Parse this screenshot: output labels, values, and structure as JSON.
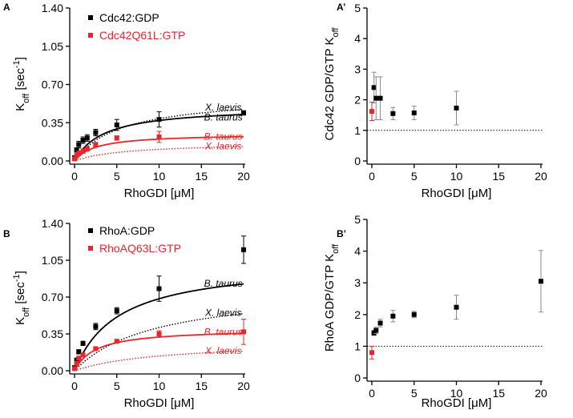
{
  "colors": {
    "black": "#000000",
    "red": "#e8262b",
    "gray": "#8a8a8a"
  },
  "chart_data": [
    {
      "panel": "A",
      "type": "scatter",
      "xlabel": "RhoGDI [μM]",
      "ylabel": "K_off [sec^-1]",
      "xlim": [
        0,
        20
      ],
      "ylim": [
        0,
        1.4
      ],
      "xticks": [
        "0",
        "5",
        "10",
        "15",
        "20"
      ],
      "yticks": [
        "0.00",
        "0.35",
        "0.70",
        "1.05",
        "1.40"
      ],
      "legend": "top-left",
      "series": [
        {
          "name": "Cdc42:GDP",
          "color": "#000000",
          "x": [
            0,
            0.25,
            0.5,
            1,
            1.5,
            2.5,
            5,
            10,
            20
          ],
          "y": [
            0.03,
            0.1,
            0.15,
            0.19,
            0.21,
            0.26,
            0.33,
            0.38,
            0.44
          ],
          "err": [
            0.01,
            0.02,
            0.03,
            0.03,
            0.03,
            0.03,
            0.05,
            0.07,
            0.02
          ]
        },
        {
          "name": "Cdc42Q61L:GTP",
          "color": "#e8262b",
          "x": [
            0,
            0.25,
            0.5,
            1,
            1.5,
            2.5,
            5,
            10
          ],
          "y": [
            0.02,
            0.05,
            0.07,
            0.09,
            0.11,
            0.15,
            0.21,
            0.22
          ],
          "err": [
            0.01,
            0.01,
            0.02,
            0.02,
            0.02,
            0.02,
            0.02,
            0.05
          ]
        }
      ],
      "curves": [
        {
          "label": "X. laevis",
          "color": "#000000",
          "style": "dotted",
          "vmax": 0.6,
          "km": 5.5,
          "y0": 0.0
        },
        {
          "label": "B. taurus",
          "color": "#000000",
          "style": "solid",
          "vmax": 0.5,
          "km": 3.5,
          "y0": 0.0
        },
        {
          "label": "B. taurus",
          "color": "#e8262b",
          "style": "solid",
          "vmax": 0.25,
          "km": 2.5,
          "y0": 0.0
        },
        {
          "label": "X. laevis",
          "color": "#e8262b",
          "style": "dotted",
          "vmax": 0.17,
          "km": 6.0,
          "y0": 0.0
        }
      ],
      "curve_labels": [
        {
          "text": "X. laevis",
          "color": "#000000",
          "x": 17.6,
          "y": 0.49
        },
        {
          "text": "B. taurus",
          "color": "#000000",
          "x": 17.6,
          "y": 0.4
        },
        {
          "text": "B. taurus",
          "color": "#e8262b",
          "x": 17.6,
          "y": 0.225
        },
        {
          "text": "X. laevis",
          "color": "#e8262b",
          "x": 17.6,
          "y": 0.135
        }
      ]
    },
    {
      "panel": "A’",
      "type": "scatter",
      "xlabel": "RhoGDI [μM]",
      "ylabel": "Cdc42 GDP/GTP K_off",
      "xlim": [
        0,
        20
      ],
      "ylim": [
        0,
        5
      ],
      "xticks": [
        "0",
        "5",
        "10",
        "15",
        "20"
      ],
      "yticks": [
        "0",
        "1",
        "2",
        "3",
        "4",
        "5"
      ],
      "reference_line": 1,
      "series": [
        {
          "name": "",
          "color": "#000000",
          "x": [
            0.25,
            0.5,
            1,
            2.5,
            5,
            10
          ],
          "y": [
            2.4,
            2.05,
            2.05,
            1.55,
            1.57,
            1.73
          ],
          "err": [
            0.5,
            0.7,
            0.7,
            0.2,
            0.22,
            0.55
          ]
        },
        {
          "name": "",
          "color": "#e8262b",
          "x": [
            0
          ],
          "y": [
            1.62
          ],
          "err": [
            0.3
          ]
        }
      ]
    },
    {
      "panel": "B",
      "type": "scatter",
      "xlabel": "RhoGDI [μM]",
      "ylabel": "K_off [sec^-1]",
      "xlim": [
        0,
        20
      ],
      "ylim": [
        0,
        1.4
      ],
      "xticks": [
        "0",
        "5",
        "10",
        "15",
        "20"
      ],
      "yticks": [
        "0.00",
        "0.35",
        "0.70",
        "1.05",
        "1.40"
      ],
      "legend": "top-left",
      "series": [
        {
          "name": "RhoA:GDP",
          "color": "#000000",
          "x": [
            0,
            0.25,
            0.5,
            1,
            2.5,
            5,
            10,
            20
          ],
          "y": [
            0.03,
            0.1,
            0.18,
            0.26,
            0.42,
            0.57,
            0.78,
            1.15
          ],
          "err": [
            0.01,
            0.02,
            0.02,
            0.02,
            0.03,
            0.03,
            0.12,
            0.13
          ]
        },
        {
          "name": "RhoAQ63L:GTP",
          "color": "#e8262b",
          "x": [
            0,
            0.25,
            0.5,
            1,
            2.5,
            5,
            10,
            20
          ],
          "y": [
            0.02,
            0.07,
            0.12,
            0.15,
            0.21,
            0.28,
            0.35,
            0.37
          ],
          "err": [
            0.01,
            0.01,
            0.01,
            0.01,
            0.01,
            0.01,
            0.03,
            0.12
          ]
        }
      ],
      "curves": [
        {
          "label": "B. taurus",
          "color": "#000000",
          "style": "solid",
          "vmax": 1.04,
          "km": 5.2,
          "y0": 0.0
        },
        {
          "label": "X. laevis",
          "color": "#000000",
          "style": "dotted",
          "vmax": 0.8,
          "km": 9.5,
          "y0": 0.0
        },
        {
          "label": "B. taurus",
          "color": "#e8262b",
          "style": "solid",
          "vmax": 0.4,
          "km": 2.5,
          "y0": 0.0
        },
        {
          "label": "X. laevis",
          "color": "#e8262b",
          "style": "dotted",
          "vmax": 0.28,
          "km": 10.0,
          "y0": 0.0
        }
      ],
      "curve_labels": [
        {
          "text": "B. taurus",
          "color": "#000000",
          "x": 17.6,
          "y": 0.83
        },
        {
          "text": "X. laevis",
          "color": "#000000",
          "x": 17.6,
          "y": 0.55
        },
        {
          "text": "B. taurus",
          "color": "#e8262b",
          "x": 17.6,
          "y": 0.37
        },
        {
          "text": "X. laevis",
          "color": "#e8262b",
          "x": 17.6,
          "y": 0.19
        }
      ]
    },
    {
      "panel": "B’",
      "type": "scatter",
      "xlabel": "RhoGDI [μM]",
      "ylabel": "RhoA GDP/GTP K_off",
      "xlim": [
        0,
        20
      ],
      "ylim": [
        0,
        5
      ],
      "xticks": [
        "0",
        "5",
        "10",
        "15",
        "20"
      ],
      "yticks": [
        "0",
        "1",
        "2",
        "3",
        "4",
        "5"
      ],
      "reference_line": 1,
      "series": [
        {
          "name": "",
          "color": "#000000",
          "x": [
            0.25,
            0.5,
            1,
            2.5,
            5,
            10,
            20
          ],
          "y": [
            1.42,
            1.5,
            1.73,
            1.95,
            2.0,
            2.23,
            3.05
          ],
          "err": [
            0.08,
            0.1,
            0.12,
            0.18,
            0.1,
            0.38,
            0.97
          ]
        },
        {
          "name": "",
          "color": "#e8262b",
          "x": [
            0
          ],
          "y": [
            0.8
          ],
          "err": [
            0.2
          ]
        }
      ]
    }
  ]
}
